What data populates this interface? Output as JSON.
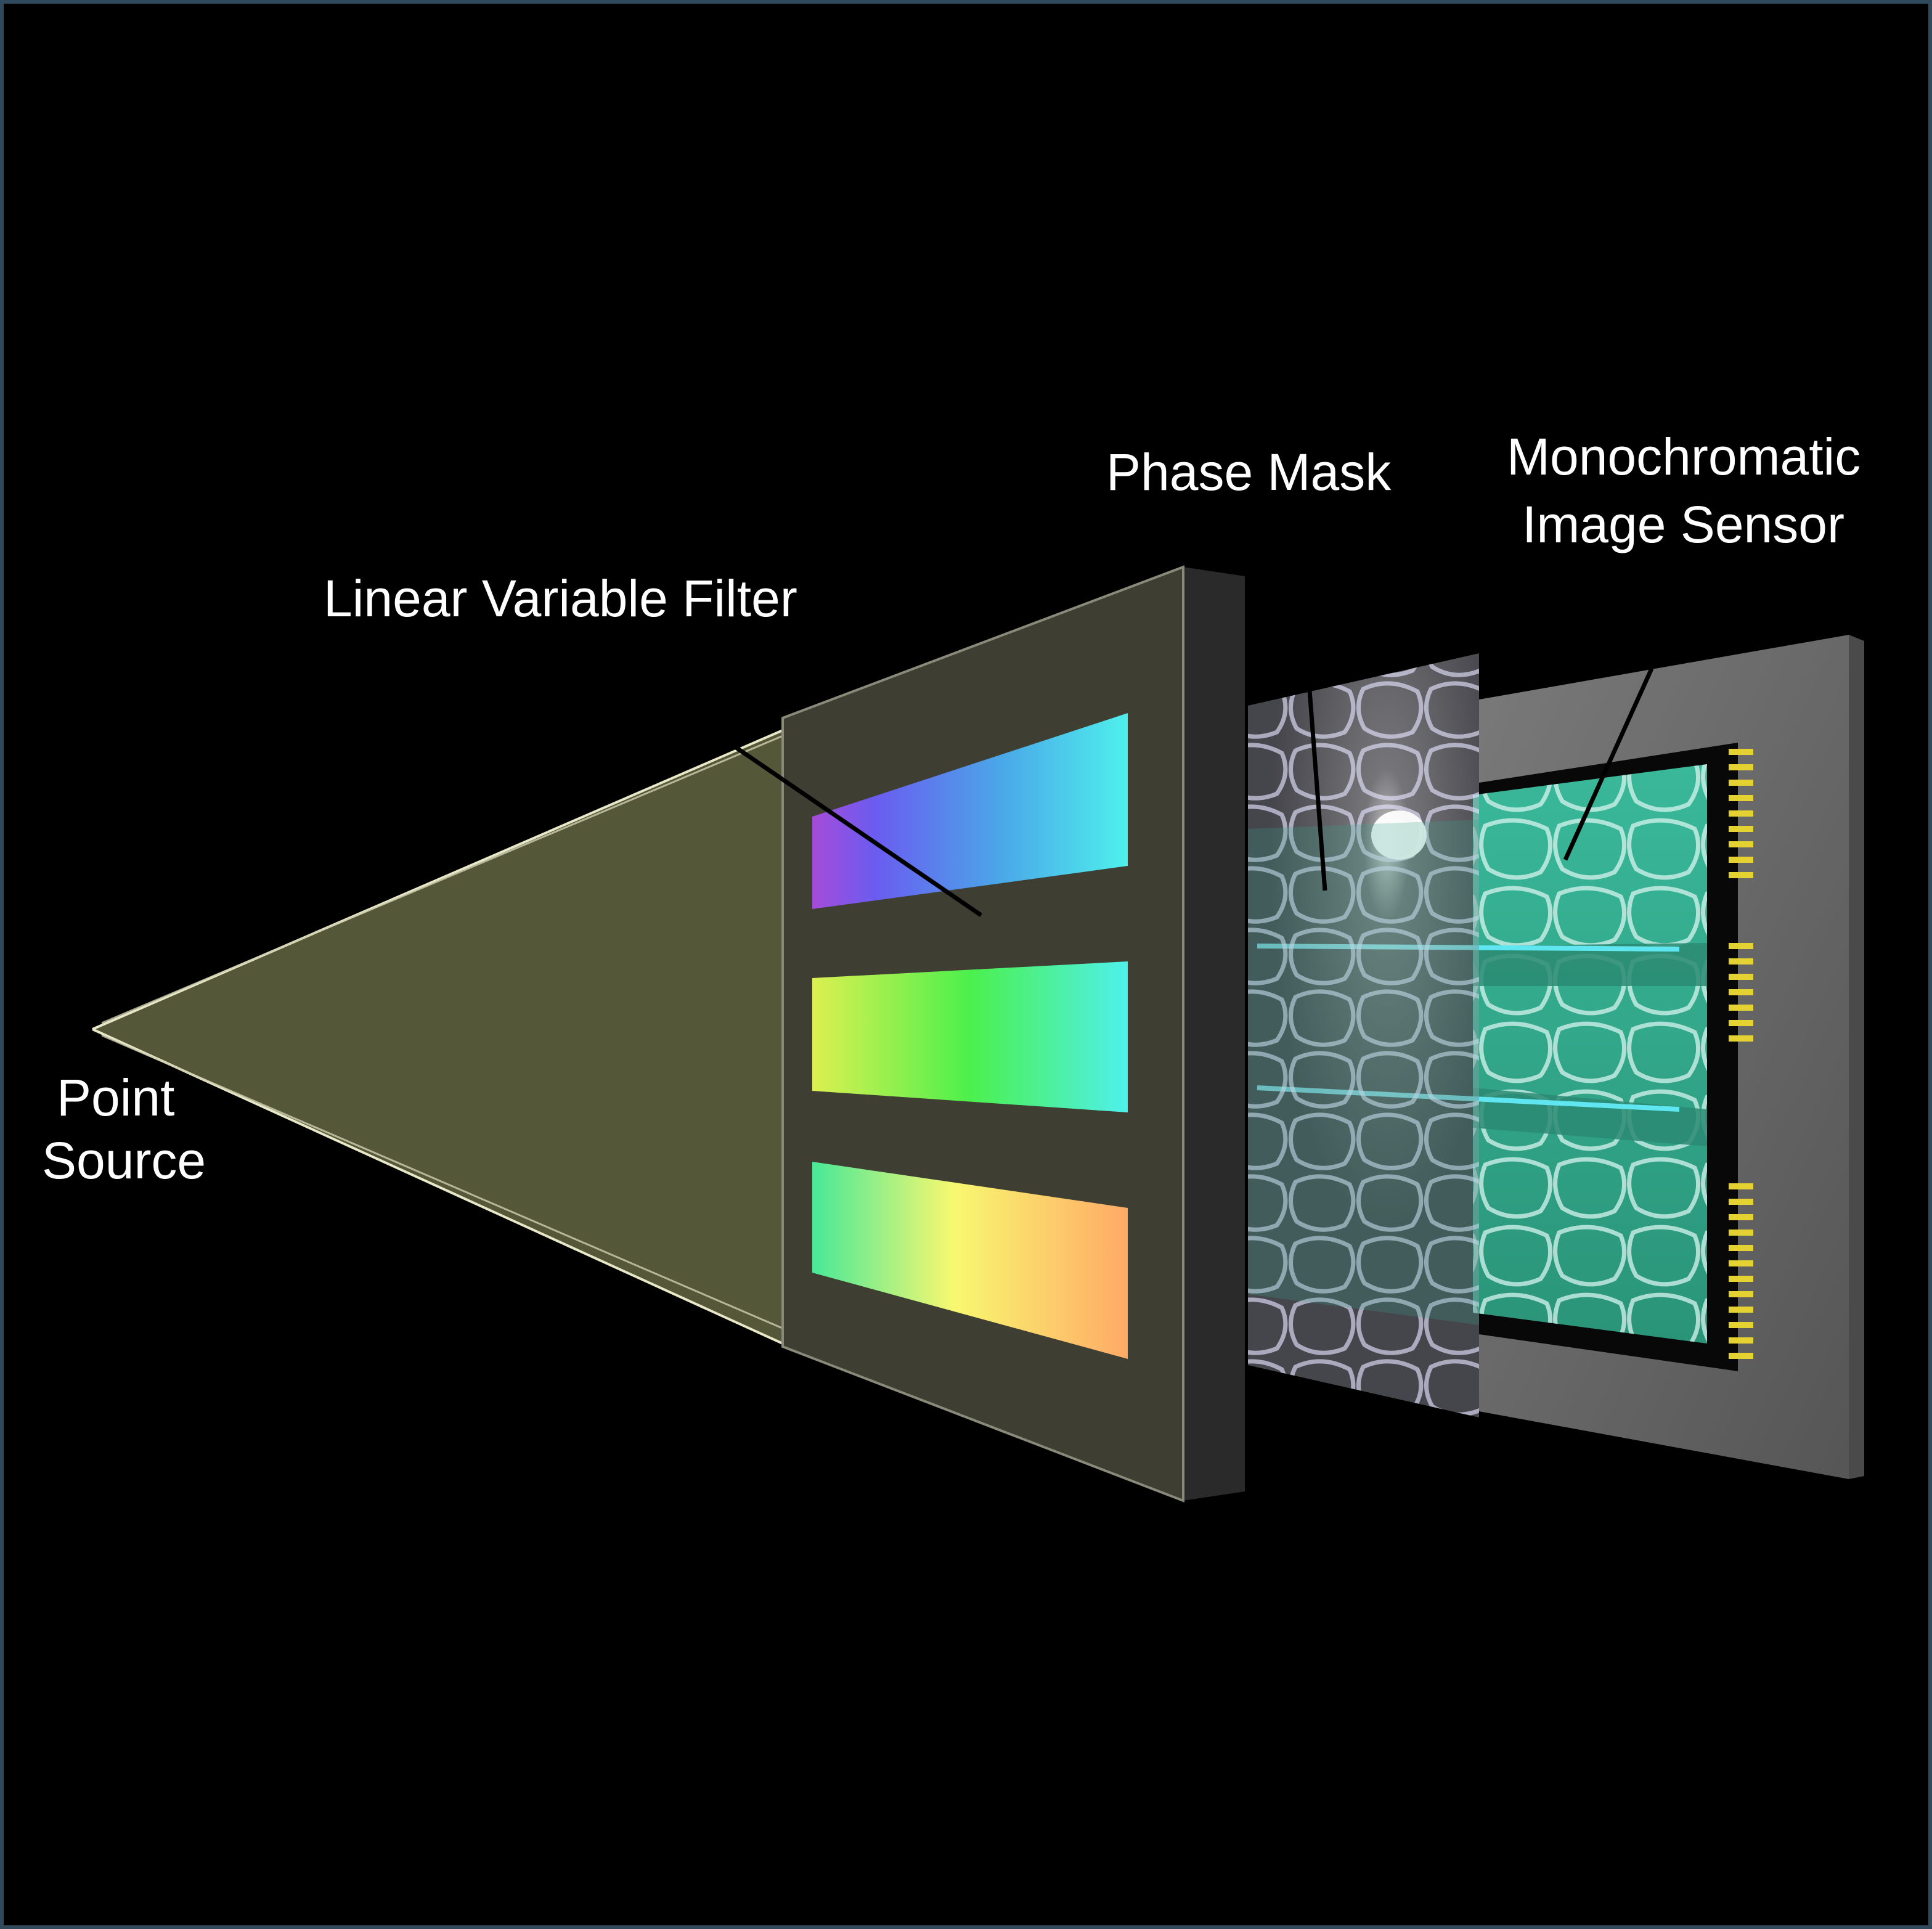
{
  "labels": {
    "point_source_line1": "Point",
    "point_source_line2": "Source",
    "linear_variable_filter": "Linear Variable Filter",
    "phase_mask": "Phase Mask",
    "sensor_line1": "Monochromatic",
    "sensor_line2": "Image Sensor"
  },
  "colors": {
    "background": "#000000",
    "border": "#2e4a5c",
    "light_cone": "#5a5c3c",
    "filter_plate": "#3e3e32",
    "filter_edge": "#2a2a2a",
    "sensor_frame": "#6e6e6e",
    "sensor_chip": "#2fa58a",
    "pins": "#e4d232",
    "band_top": [
      "#a64bd9",
      "#6a5cf0",
      "#4aa8e8",
      "#4ef0ec"
    ],
    "band_middle": [
      "#dcf050",
      "#4cf04c",
      "#4ef0ec"
    ],
    "band_bottom": [
      "#48e898",
      "#f8f870",
      "#ffaa66"
    ]
  }
}
